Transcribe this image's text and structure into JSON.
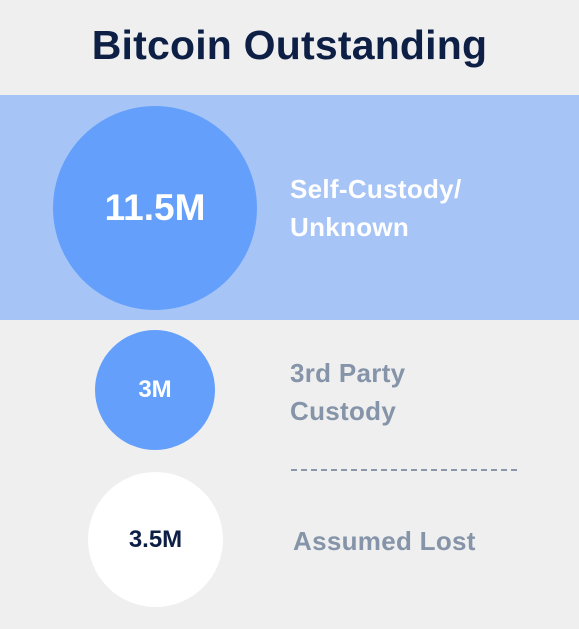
{
  "title": "Bitcoin Outstanding",
  "colors": {
    "title": "#0d1f45",
    "highlight_band": "#a6c4f6",
    "blue_circle": "#64a0fb",
    "white_circle": "#ffffff",
    "muted_label": "#8594a8",
    "highlight_label": "#ffffff"
  },
  "groups": [
    {
      "value": "11.5M",
      "label_line1": "Self-Custody/",
      "label_line2": "Unknown",
      "highlighted": true
    },
    {
      "value": "3M",
      "label_line1": "3rd Party",
      "label_line2": "Custody",
      "highlighted": false
    },
    {
      "value": "3.5M",
      "label_line1": "Assumed Lost",
      "highlighted": false
    }
  ]
}
